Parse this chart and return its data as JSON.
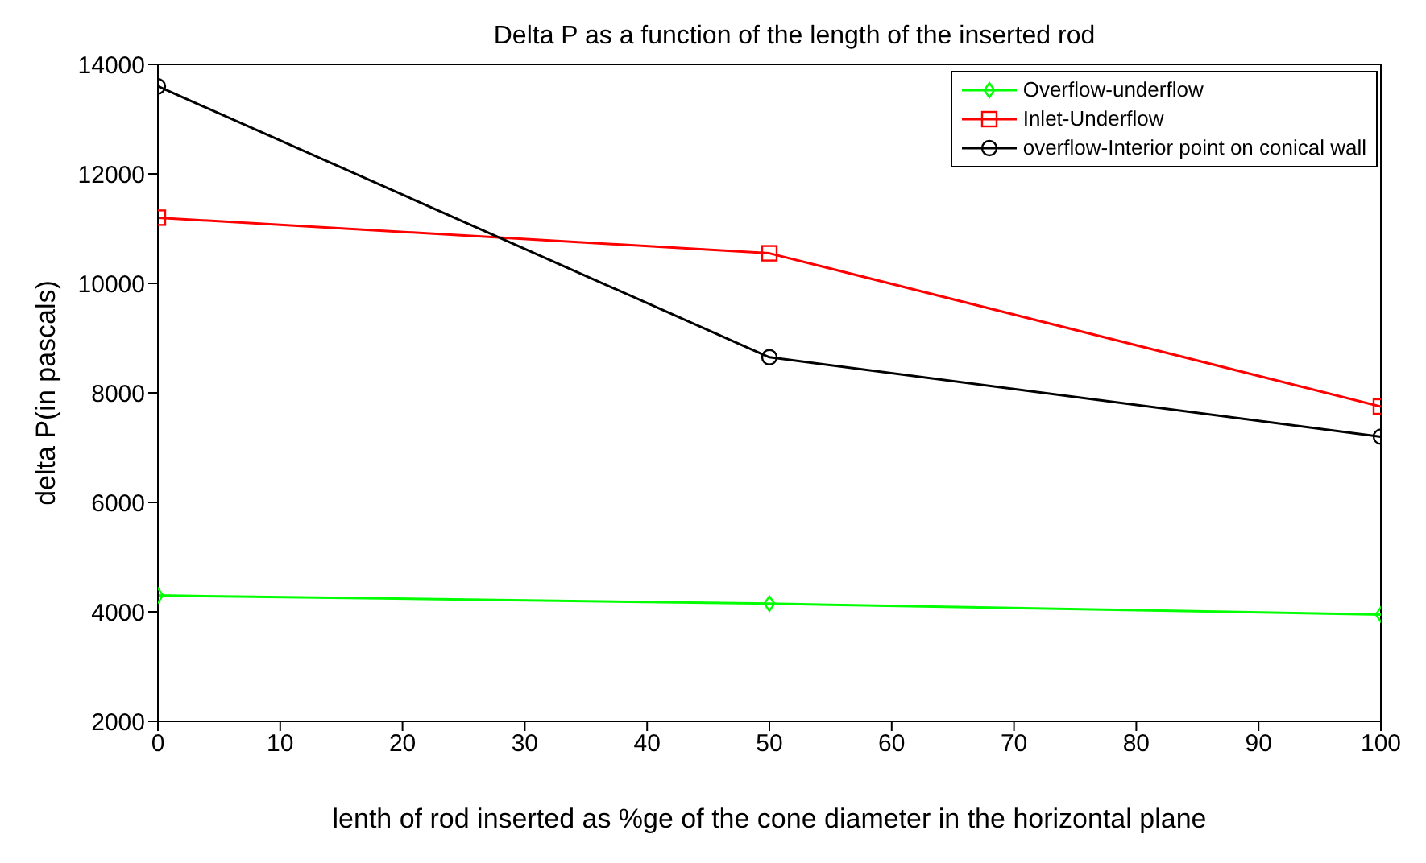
{
  "chart_data": {
    "type": "line",
    "title": "Delta P as a function of the length of the inserted rod",
    "xlabel": "lenth of rod inserted as %ge of the cone diameter in the horizontal plane",
    "ylabel": "delta  P(in pascals)",
    "x": [
      0,
      50,
      100
    ],
    "series": [
      {
        "name": "Overflow-underflow",
        "color": "#00ff00",
        "marker": "diamond",
        "values": [
          4300,
          4150,
          3950
        ]
      },
      {
        "name": "Inlet-Underflow",
        "color": "#ff0000",
        "marker": "square",
        "values": [
          11200,
          10550,
          7750
        ]
      },
      {
        "name": "overflow-Interior point on conical wall",
        "color": "#000000",
        "marker": "circle",
        "values": [
          13600,
          8650,
          7200
        ]
      }
    ],
    "xlim": [
      0,
      100
    ],
    "xticks": [
      0,
      10,
      20,
      30,
      40,
      50,
      60,
      70,
      80,
      90,
      100
    ],
    "ylim": [
      2000,
      14000
    ],
    "yticks": [
      2000,
      4000,
      6000,
      8000,
      10000,
      12000,
      14000
    ],
    "grid": false,
    "legend": "top right",
    "line_style": "solid"
  }
}
